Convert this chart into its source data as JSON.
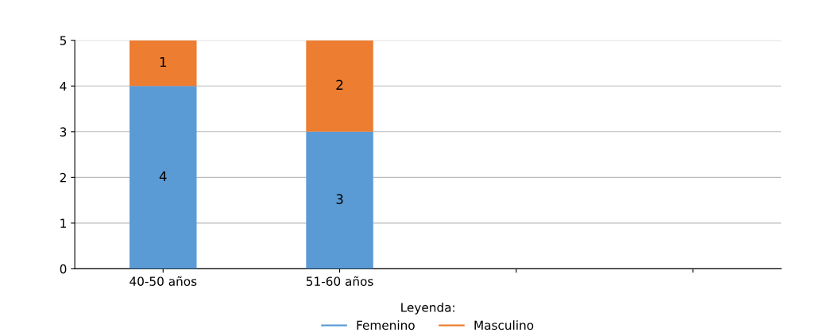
{
  "chart_data": {
    "type": "bar",
    "stacked": true,
    "categories": [
      "40-50 años",
      "51-60 años",
      null,
      null
    ],
    "series": [
      {
        "name": "Femenino",
        "color": "#5b9bd5",
        "values": [
          4,
          3,
          null,
          null
        ]
      },
      {
        "name": "Masculino",
        "color": "#ed7d31",
        "values": [
          1,
          2,
          null,
          null
        ]
      }
    ],
    "ylim": [
      0,
      5
    ],
    "yticks": [
      0,
      1,
      2,
      3,
      4,
      5
    ],
    "grid": "y",
    "data_labels": true,
    "legend": "bottom",
    "legend_title": "Leyenda:"
  }
}
